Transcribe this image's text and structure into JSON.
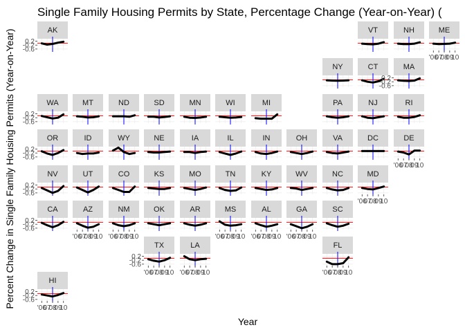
{
  "chart_data": {
    "type": "line",
    "title": "Single Family Housing Permits by State, Percentage Change (Year-on-Year) (",
    "xlabel": "Year",
    "ylabel": "Percent Change in Single Family Housing Permits (Year-on-Year)",
    "x_ticks": [
      "'06",
      "07",
      "08",
      "09",
      "10"
    ],
    "x_tick_values": [
      2006,
      2007,
      2008,
      2009,
      2010
    ],
    "y_ticks": [
      "0.2",
      "-0.2",
      "-0.6"
    ],
    "y_tick_values": [
      0.2,
      -0.2,
      -0.6
    ],
    "xlim": [
      2005.2,
      2010.8
    ],
    "ylim": [
      -0.75,
      0.45
    ],
    "reference_line_y": 0,
    "reference_line_x": 2008,
    "grid": true,
    "colors": {
      "series": "#000000",
      "hline": "#ff0000",
      "vline": "#0000ff",
      "strip": "#d9d9d9",
      "grid": "#ebebeb"
    },
    "states": [
      {
        "name": "AK",
        "col": 0,
        "row": 0,
        "x_axis": false,
        "y_axis": true,
        "values": [
          -0.02,
          -0.15,
          -0.08,
          0.05,
          0.15
        ]
      },
      {
        "name": "VT",
        "col": 9,
        "row": 0,
        "x_axis": false,
        "y_axis": false,
        "values": [
          -0.05,
          -0.1,
          -0.12,
          -0.05,
          0.1
        ]
      },
      {
        "name": "NH",
        "col": 10,
        "row": 0,
        "x_axis": false,
        "y_axis": false,
        "values": [
          -0.05,
          -0.1,
          -0.1,
          -0.05,
          0.08
        ]
      },
      {
        "name": "ME",
        "col": 11,
        "row": 0,
        "x_axis": true,
        "y_axis": false,
        "values": [
          -0.05,
          -0.1,
          -0.08,
          -0.05,
          0.05
        ]
      },
      {
        "name": "NY",
        "col": 8,
        "row": 1,
        "x_axis": false,
        "y_axis": false,
        "values": [
          -0.05,
          -0.08,
          -0.1,
          -0.08,
          -0.05
        ]
      },
      {
        "name": "CT",
        "col": 9,
        "row": 1,
        "x_axis": false,
        "y_axis": false,
        "values": [
          -0.05,
          -0.2,
          -0.28,
          -0.15,
          0.1
        ]
      },
      {
        "name": "MA",
        "col": 10,
        "row": 1,
        "x_axis": false,
        "y_axis": true,
        "values": [
          -0.05,
          -0.1,
          -0.12,
          -0.08,
          0.15
        ]
      },
      {
        "name": "WA",
        "col": 0,
        "row": 2,
        "x_axis": false,
        "y_axis": true,
        "values": [
          -0.02,
          -0.15,
          -0.28,
          -0.2,
          0.15
        ]
      },
      {
        "name": "MT",
        "col": 1,
        "row": 2,
        "x_axis": false,
        "y_axis": false,
        "values": [
          -0.05,
          -0.1,
          -0.18,
          -0.15,
          -0.05
        ]
      },
      {
        "name": "ND",
        "col": 2,
        "row": 2,
        "x_axis": false,
        "y_axis": false,
        "values": [
          -0.05,
          -0.05,
          -0.05,
          -0.1,
          0.05
        ]
      },
      {
        "name": "SD",
        "col": 3,
        "row": 2,
        "x_axis": false,
        "y_axis": false,
        "values": [
          -0.1,
          -0.1,
          -0.18,
          -0.12,
          -0.05
        ]
      },
      {
        "name": "MN",
        "col": 4,
        "row": 2,
        "x_axis": false,
        "y_axis": false,
        "values": [
          -0.1,
          -0.2,
          -0.22,
          -0.18,
          -0.1
        ]
      },
      {
        "name": "WI",
        "col": 5,
        "row": 2,
        "x_axis": false,
        "y_axis": false,
        "values": [
          -0.1,
          -0.15,
          -0.2,
          -0.18,
          -0.12
        ]
      },
      {
        "name": "MI",
        "col": 6,
        "row": 2,
        "x_axis": false,
        "y_axis": false,
        "values": [
          -0.25,
          -0.3,
          -0.3,
          -0.3,
          0.15
        ]
      },
      {
        "name": "PA",
        "col": 8,
        "row": 2,
        "x_axis": false,
        "y_axis": false,
        "values": [
          -0.05,
          -0.15,
          -0.2,
          -0.15,
          -0.05
        ]
      },
      {
        "name": "NJ",
        "col": 9,
        "row": 2,
        "x_axis": false,
        "y_axis": false,
        "values": [
          -0.05,
          -0.2,
          -0.25,
          -0.15,
          -0.05
        ]
      },
      {
        "name": "RI",
        "col": 10,
        "row": 2,
        "x_axis": false,
        "y_axis": false,
        "values": [
          -0.1,
          -0.2,
          -0.2,
          -0.12,
          0.05
        ]
      },
      {
        "name": "OR",
        "col": 0,
        "row": 3,
        "x_axis": false,
        "y_axis": true,
        "values": [
          -0.02,
          -0.25,
          -0.4,
          -0.2,
          0.1
        ]
      },
      {
        "name": "ID",
        "col": 1,
        "row": 3,
        "x_axis": false,
        "y_axis": false,
        "values": [
          -0.2,
          -0.3,
          -0.25,
          -0.25,
          -0.15
        ]
      },
      {
        "name": "WY",
        "col": 2,
        "row": 3,
        "x_axis": false,
        "y_axis": false,
        "values": [
          0.05,
          0.35,
          -0.1,
          -0.3,
          -0.2
        ]
      },
      {
        "name": "NE",
        "col": 3,
        "row": 3,
        "x_axis": false,
        "y_axis": false,
        "values": [
          -0.1,
          -0.15,
          -0.15,
          -0.1,
          -0.05
        ]
      },
      {
        "name": "IA",
        "col": 4,
        "row": 3,
        "x_axis": false,
        "y_axis": false,
        "values": [
          -0.1,
          -0.1,
          -0.2,
          -0.1,
          -0.05
        ]
      },
      {
        "name": "IL",
        "col": 5,
        "row": 3,
        "x_axis": false,
        "y_axis": false,
        "values": [
          -0.1,
          -0.25,
          -0.4,
          -0.25,
          -0.05
        ]
      },
      {
        "name": "IN",
        "col": 6,
        "row": 3,
        "x_axis": false,
        "y_axis": false,
        "values": [
          -0.1,
          -0.25,
          -0.3,
          -0.2,
          -0.05
        ]
      },
      {
        "name": "OH",
        "col": 7,
        "row": 3,
        "x_axis": false,
        "y_axis": false,
        "values": [
          -0.1,
          -0.2,
          -0.3,
          -0.2,
          -0.05
        ]
      },
      {
        "name": "VA",
        "col": 8,
        "row": 3,
        "x_axis": false,
        "y_axis": false,
        "values": [
          -0.1,
          -0.2,
          -0.25,
          -0.15,
          -0.05
        ]
      },
      {
        "name": "DC",
        "col": 9,
        "row": 3,
        "x_axis": false,
        "y_axis": false,
        "values": [
          0.0,
          0.0,
          0.0,
          0.0,
          0.0
        ]
      },
      {
        "name": "DE",
        "col": 10,
        "row": 3,
        "x_axis": true,
        "y_axis": false,
        "values": [
          -0.05,
          -0.15,
          -0.35,
          0.05,
          0.05
        ]
      },
      {
        "name": "NV",
        "col": 0,
        "row": 4,
        "x_axis": false,
        "y_axis": true,
        "values": [
          -0.1,
          -0.35,
          -0.6,
          -0.4,
          0.1
        ]
      },
      {
        "name": "UT",
        "col": 1,
        "row": 4,
        "x_axis": false,
        "y_axis": false,
        "values": [
          -0.05,
          -0.3,
          -0.55,
          -0.3,
          0.05
        ]
      },
      {
        "name": "CO",
        "col": 2,
        "row": 4,
        "x_axis": false,
        "y_axis": false,
        "values": [
          -0.1,
          -0.3,
          -0.5,
          -0.5,
          0.05
        ]
      },
      {
        "name": "KS",
        "col": 3,
        "row": 4,
        "x_axis": false,
        "y_axis": false,
        "values": [
          -0.1,
          -0.15,
          -0.2,
          -0.2,
          -0.1
        ]
      },
      {
        "name": "MO",
        "col": 4,
        "row": 4,
        "x_axis": false,
        "y_axis": false,
        "values": [
          -0.1,
          -0.2,
          -0.3,
          -0.2,
          -0.05
        ]
      },
      {
        "name": "TN",
        "col": 5,
        "row": 4,
        "x_axis": false,
        "y_axis": false,
        "values": [
          -0.1,
          -0.3,
          -0.4,
          -0.35,
          -0.05
        ]
      },
      {
        "name": "KY",
        "col": 6,
        "row": 4,
        "x_axis": false,
        "y_axis": false,
        "values": [
          -0.1,
          -0.2,
          -0.3,
          -0.25,
          -0.1
        ]
      },
      {
        "name": "WV",
        "col": 7,
        "row": 4,
        "x_axis": false,
        "y_axis": false,
        "values": [
          -0.1,
          -0.15,
          -0.3,
          -0.2,
          -0.1
        ]
      },
      {
        "name": "NC",
        "col": 8,
        "row": 4,
        "x_axis": false,
        "y_axis": false,
        "values": [
          -0.1,
          -0.25,
          -0.35,
          -0.3,
          -0.1
        ]
      },
      {
        "name": "MD",
        "col": 9,
        "row": 4,
        "x_axis": true,
        "y_axis": false,
        "values": [
          -0.1,
          -0.2,
          -0.25,
          -0.1,
          0.05
        ]
      },
      {
        "name": "CA",
        "col": 0,
        "row": 5,
        "x_axis": false,
        "y_axis": true,
        "values": [
          -0.05,
          -0.3,
          -0.5,
          -0.3,
          0.05
        ]
      },
      {
        "name": "AZ",
        "col": 1,
        "row": 5,
        "x_axis": true,
        "y_axis": false,
        "values": [
          -0.1,
          -0.35,
          -0.55,
          -0.45,
          -0.2
        ]
      },
      {
        "name": "NM",
        "col": 2,
        "row": 5,
        "x_axis": true,
        "y_axis": false,
        "values": [
          -0.1,
          -0.3,
          -0.4,
          -0.3,
          -0.1
        ]
      },
      {
        "name": "OK",
        "col": 3,
        "row": 5,
        "x_axis": false,
        "y_axis": false,
        "values": [
          -0.1,
          -0.2,
          -0.3,
          -0.2,
          -0.1
        ]
      },
      {
        "name": "AR",
        "col": 4,
        "row": 5,
        "x_axis": false,
        "y_axis": false,
        "values": [
          -0.1,
          -0.25,
          -0.35,
          -0.25,
          -0.1
        ]
      },
      {
        "name": "MS",
        "col": 5,
        "row": 5,
        "x_axis": true,
        "y_axis": false,
        "values": [
          0.1,
          -0.25,
          -0.35,
          -0.3,
          -0.2
        ]
      },
      {
        "name": "AL",
        "col": 6,
        "row": 5,
        "x_axis": true,
        "y_axis": false,
        "values": [
          -0.1,
          -0.3,
          -0.45,
          -0.35,
          -0.2
        ]
      },
      {
        "name": "GA",
        "col": 7,
        "row": 5,
        "x_axis": true,
        "y_axis": false,
        "values": [
          -0.2,
          -0.4,
          -0.6,
          -0.45,
          -0.2
        ]
      },
      {
        "name": "SC",
        "col": 8,
        "row": 5,
        "x_axis": false,
        "y_axis": false,
        "values": [
          -0.1,
          -0.3,
          -0.45,
          -0.35,
          -0.15
        ]
      },
      {
        "name": "TX",
        "col": 3,
        "row": 6,
        "x_axis": true,
        "y_axis": true,
        "values": [
          -0.1,
          -0.25,
          -0.35,
          -0.2,
          0.05
        ]
      },
      {
        "name": "LA",
        "col": 4,
        "row": 6,
        "x_axis": true,
        "y_axis": false,
        "values": [
          0.2,
          -0.1,
          -0.2,
          -0.1,
          -0.05
        ]
      },
      {
        "name": "FL",
        "col": 8,
        "row": 6,
        "x_axis": true,
        "y_axis": false,
        "values": [
          -0.35,
          -0.6,
          -0.6,
          -0.5,
          0.1
        ]
      },
      {
        "name": "HI",
        "col": 0,
        "row": 7,
        "x_axis": true,
        "y_axis": true,
        "values": [
          -0.1,
          -0.2,
          -0.3,
          -0.15,
          0.05
        ]
      }
    ]
  }
}
